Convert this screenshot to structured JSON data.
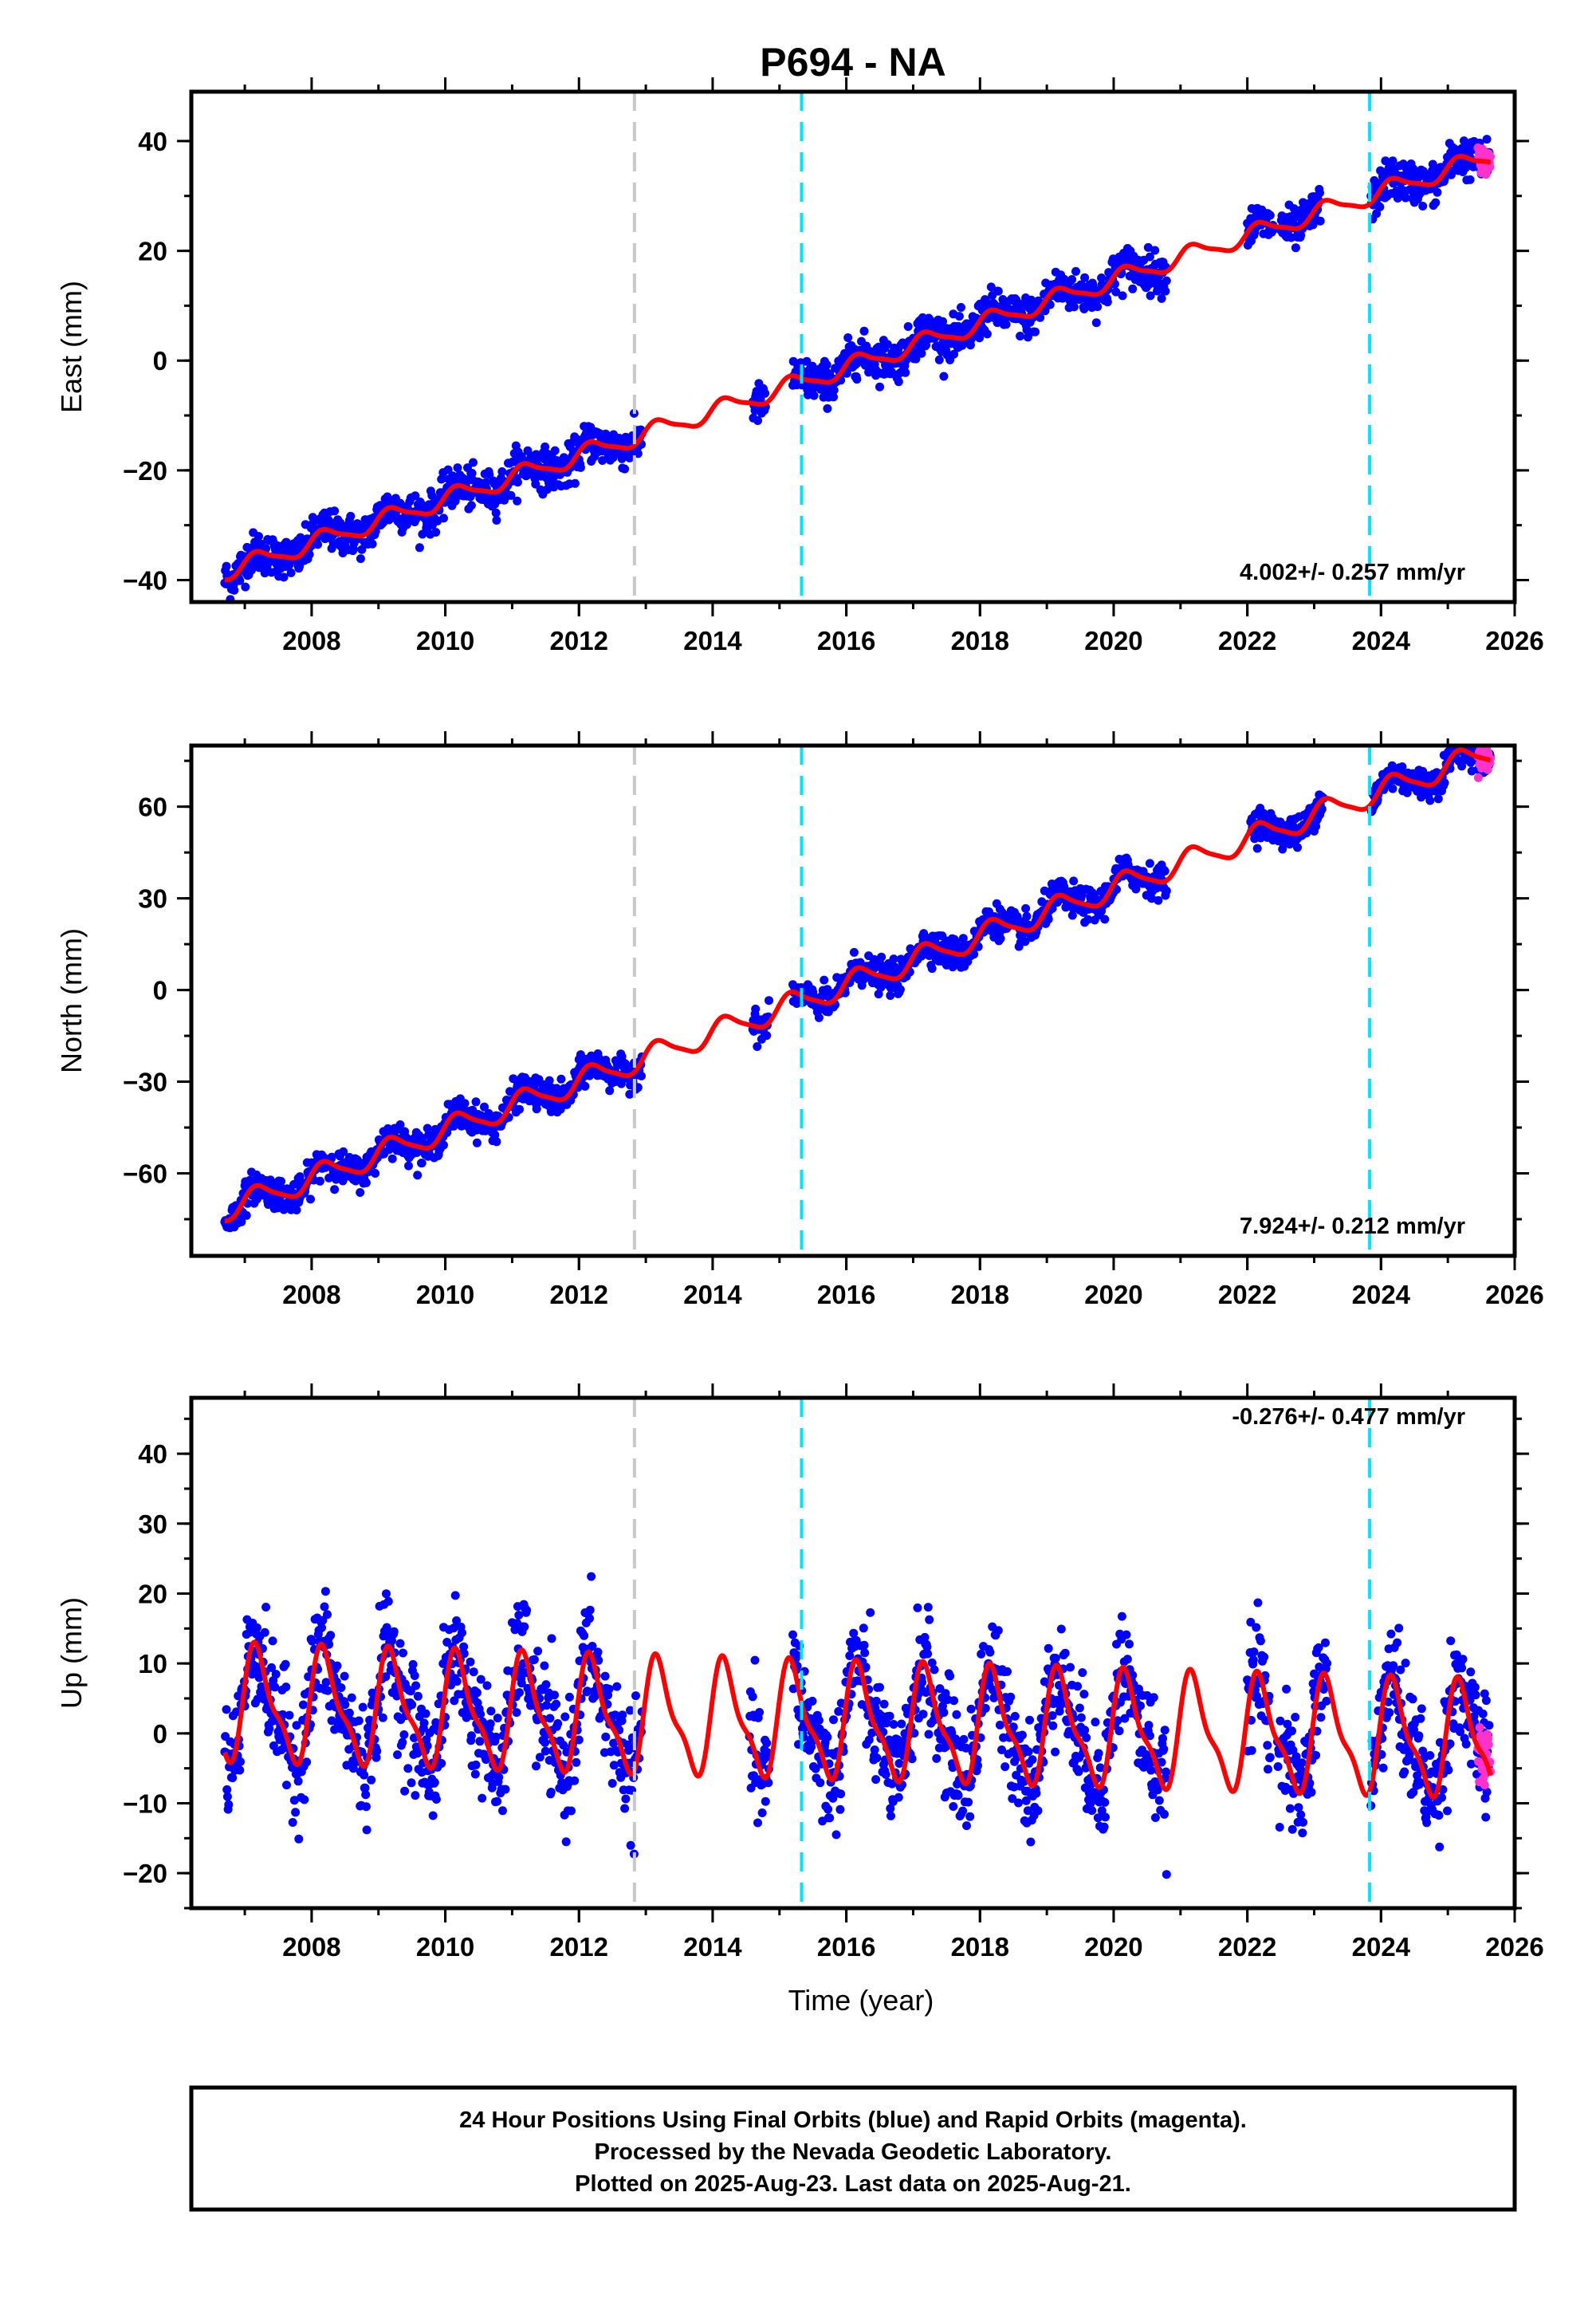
{
  "title": "P694 - NA",
  "colors": {
    "final_orbits": "#0000ff",
    "rapid_orbits": "#ff33cc",
    "model_fit": "#ff0000",
    "antenna_change_line": "#c8c8c8",
    "event_line": "#00e5ff",
    "frame": "#000000"
  },
  "caption": {
    "line1": "24 Hour Positions Using Final Orbits (blue) and Rapid Orbits (magenta).",
    "line2": "Processed by the Nevada Geodetic Laboratory.",
    "line3": "Plotted on 2025-Aug-23. Last data on 2025-Aug-21."
  },
  "chart_data": [
    {
      "type": "scatter",
      "ylabel": "East (mm)",
      "xlabel": "",
      "xlim": [
        2006.2,
        2026.0
      ],
      "ylim": [
        -44,
        49
      ],
      "x_ticks": [
        2008,
        2010,
        2012,
        2014,
        2016,
        2018,
        2020,
        2022,
        2024,
        2026
      ],
      "y_ticks": [
        -40,
        -20,
        0,
        20,
        40
      ],
      "y_tick_labels": [
        "−40",
        "−20",
        "0",
        "20",
        "40"
      ],
      "rate_label": "4.002+/- 0.257 mm/yr",
      "vertical_lines": [
        {
          "x": 2012.83,
          "style": "antenna_change"
        },
        {
          "x": 2015.33,
          "style": "event"
        },
        {
          "x": 2023.83,
          "style": "event"
        }
      ],
      "model_fit": {
        "rate": 4.0,
        "offset_at_2006_7": -38.5,
        "annual_amplitude": 1.6,
        "semiannual_amplitude": 0.4
      },
      "observation_spans": [
        [
          2006.7,
          2012.95
        ],
        [
          2014.6,
          2014.8
        ],
        [
          2015.2,
          2020.8
        ],
        [
          2022.0,
          2022.4
        ],
        [
          2022.5,
          2023.1
        ],
        [
          2023.85,
          2025.62
        ]
      ],
      "rapid_span": [
        2025.45,
        2025.64
      ],
      "scatter_sigma": 1.8,
      "grid": false,
      "legend": "none"
    },
    {
      "type": "scatter",
      "ylabel": "North (mm)",
      "xlabel": "",
      "xlim": [
        2006.2,
        2026.0
      ],
      "ylim": [
        -87,
        80
      ],
      "x_ticks": [
        2008,
        2010,
        2012,
        2014,
        2016,
        2018,
        2020,
        2022,
        2024,
        2026
      ],
      "y_ticks": [
        -60,
        -30,
        0,
        30,
        60
      ],
      "y_tick_labels": [
        "−60",
        "−30",
        "0",
        "30",
        "60"
      ],
      "rate_label": "7.924+/- 0.212 mm/yr",
      "vertical_lines": [
        {
          "x": 2012.83,
          "style": "antenna_change"
        },
        {
          "x": 2015.33,
          "style": "event"
        },
        {
          "x": 2023.83,
          "style": "event"
        }
      ],
      "model_fit": {
        "rate": 7.92,
        "offset_at_2006_7": -72.0,
        "annual_amplitude": 3.8,
        "semiannual_amplitude": 0.8
      },
      "observation_spans": [
        [
          2006.7,
          2012.95
        ],
        [
          2014.6,
          2014.85
        ],
        [
          2015.2,
          2020.8
        ],
        [
          2022.05,
          2023.15
        ],
        [
          2023.85,
          2025.64
        ]
      ],
      "rapid_span": [
        2025.45,
        2025.64
      ],
      "scatter_sigma": 2.5,
      "grid": false,
      "legend": "none"
    },
    {
      "type": "scatter",
      "ylabel": "Up (mm)",
      "xlabel": "Time (year)",
      "xlim": [
        2006.2,
        2026.0
      ],
      "ylim": [
        -25,
        48
      ],
      "x_ticks": [
        2008,
        2010,
        2012,
        2014,
        2016,
        2018,
        2020,
        2022,
        2024,
        2026
      ],
      "y_ticks": [
        -20,
        -10,
        0,
        10,
        20,
        30,
        40
      ],
      "y_tick_labels": [
        "−20",
        "−10",
        "0",
        "10",
        "20",
        "30",
        "40"
      ],
      "rate_label": "-0.276+/- 0.477 mm/yr",
      "vertical_lines": [
        {
          "x": 2012.83,
          "style": "antenna_change"
        },
        {
          "x": 2015.33,
          "style": "event"
        },
        {
          "x": 2023.83,
          "style": "event"
        }
      ],
      "model_fit": {
        "rate": -0.276,
        "offset_at_2006_7": 4.0,
        "annual_amplitude": 7.5,
        "semiannual_amplitude": 2.5
      },
      "observation_spans": [
        [
          2006.7,
          2012.95
        ],
        [
          2014.55,
          2014.85
        ],
        [
          2015.2,
          2020.8
        ],
        [
          2022.0,
          2022.35
        ],
        [
          2022.45,
          2023.2
        ],
        [
          2023.85,
          2025.62
        ]
      ],
      "rapid_span": [
        2025.45,
        2025.64
      ],
      "scatter_sigma": 4.0,
      "grid": false,
      "legend": "none"
    }
  ]
}
